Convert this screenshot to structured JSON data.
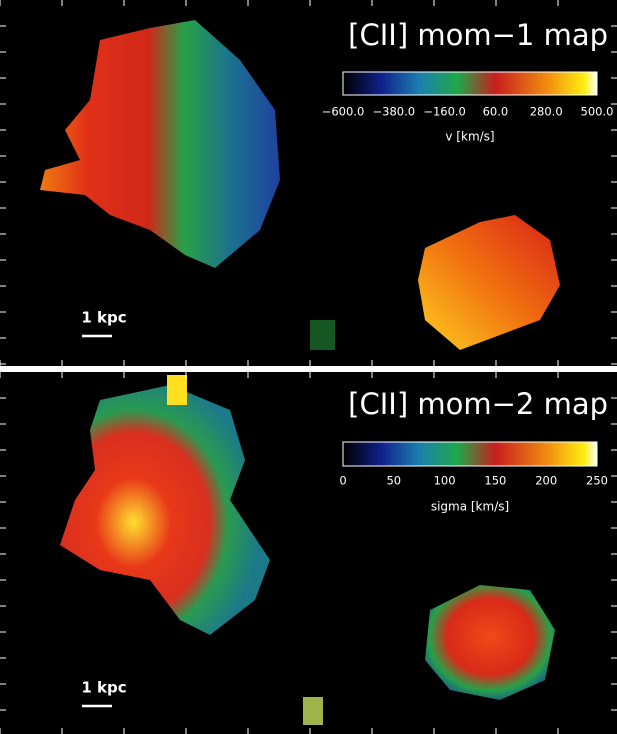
{
  "panels": [
    {
      "title": "[CII] mom−1 map",
      "colorbar": {
        "ticks": [
          "−600.0",
          "−380.0",
          "−160.0",
          "60.0",
          "280.0",
          "500.0"
        ],
        "label": "v [km/s]"
      },
      "scale_bar": "1 kpc"
    },
    {
      "title": "[CII] mom−2 map",
      "colorbar": {
        "ticks": [
          "0",
          "50",
          "100",
          "150",
          "200",
          "250"
        ],
        "label": "sigma [km/s]"
      },
      "scale_bar": "1 kpc"
    }
  ]
}
